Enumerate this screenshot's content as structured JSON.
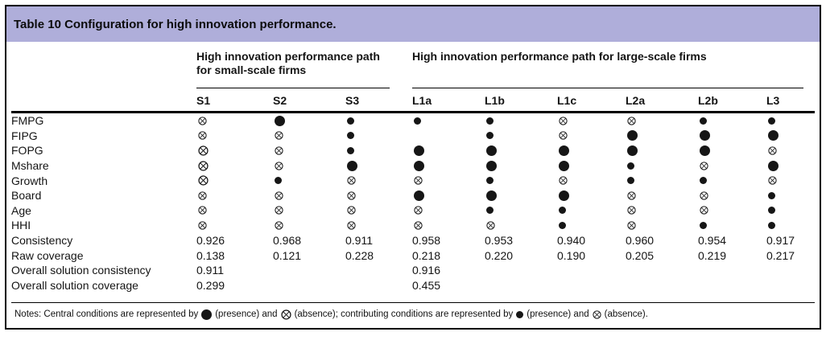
{
  "table": {
    "title": "Table 10 Configuration for high innovation performance.",
    "groups": [
      {
        "label": "High innovation performance path for small-scale firms",
        "columns": [
          "S1",
          "S2",
          "S3"
        ]
      },
      {
        "label": "High innovation performance path for large-scale firms",
        "columns": [
          "L1a",
          "L1b",
          "L1c",
          "L2a",
          "L2b",
          "L3"
        ]
      }
    ],
    "columns": [
      "S1",
      "S2",
      "S3",
      "L1a",
      "L1b",
      "L1c",
      "L2a",
      "L2b",
      "L3"
    ],
    "symbol_key": {
      "P": "central-presence",
      "p": "contributing-presence",
      "A": "central-absence",
      "a": "contributing-absence",
      "": "blank"
    },
    "condition_rows": [
      {
        "label": "FMPG",
        "cells": [
          "a",
          "P",
          "p",
          "p",
          "p",
          "a",
          "a",
          "p",
          "p"
        ]
      },
      {
        "label": "FIPG",
        "cells": [
          "a",
          "a",
          "p",
          "",
          "p",
          "a",
          "P",
          "P",
          "P"
        ]
      },
      {
        "label": "FOPG",
        "cells": [
          "A",
          "a",
          "p",
          "P",
          "P",
          "P",
          "P",
          "P",
          "a"
        ]
      },
      {
        "label": "Mshare",
        "cells": [
          "A",
          "a",
          "P",
          "P",
          "P",
          "P",
          "p",
          "a",
          "P"
        ]
      },
      {
        "label": "Growth",
        "cells": [
          "A",
          "p",
          "a",
          "a",
          "p",
          "a",
          "p",
          "p",
          "a"
        ]
      },
      {
        "label": "Board",
        "cells": [
          "a",
          "a",
          "a",
          "P",
          "P",
          "P",
          "a",
          "a",
          "p"
        ]
      },
      {
        "label": "Age",
        "cells": [
          "a",
          "a",
          "a",
          "a",
          "p",
          "p",
          "a",
          "a",
          "p"
        ]
      },
      {
        "label": "HHI",
        "cells": [
          "a",
          "a",
          "a",
          "a",
          "a",
          "p",
          "a",
          "p",
          "p"
        ]
      }
    ],
    "metric_rows": [
      {
        "label": "Consistency",
        "values": [
          "0.926",
          "0.968",
          "0.911",
          "0.958",
          "0.953",
          "0.940",
          "0.960",
          "0.954",
          "0.917"
        ]
      },
      {
        "label": "Raw coverage",
        "values": [
          "0.138",
          "0.121",
          "0.228",
          "0.218",
          "0.220",
          "0.190",
          "0.205",
          "0.219",
          "0.217"
        ]
      },
      {
        "label": "Overall solution consistency",
        "values": [
          "0.911",
          "",
          "",
          "0.916",
          "",
          "",
          "",
          "",
          ""
        ]
      },
      {
        "label": "Overall solution coverage",
        "values": [
          "0.299",
          "",
          "",
          "0.455",
          "",
          "",
          "",
          "",
          ""
        ]
      }
    ],
    "notes": {
      "seg1": "Notes: Central conditions are represented by",
      "seg2": "(presence) and",
      "seg3": "(absence); contributing conditions are represented by",
      "seg4": "(presence) and",
      "seg5": "(absence)."
    },
    "colors": {
      "header_band": "#afaeda",
      "text": "#141414",
      "border": "#000000"
    }
  }
}
